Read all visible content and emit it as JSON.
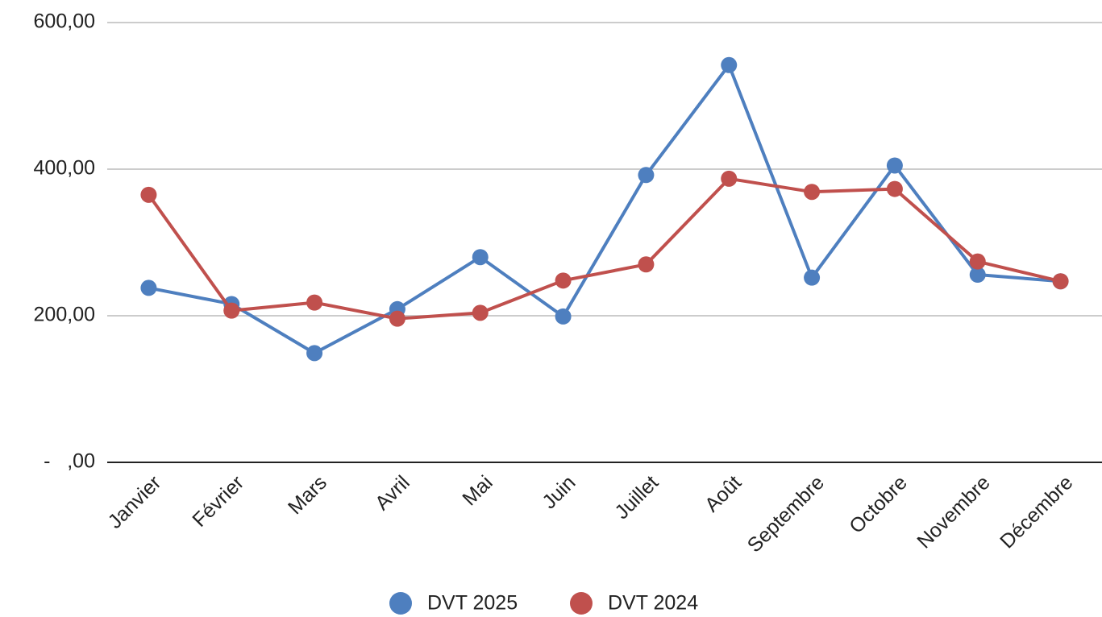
{
  "chart_data": {
    "type": "line",
    "categories": [
      "Janvier",
      "Février",
      "Mars",
      "Avril",
      "Mai",
      "Juin",
      "Juillet",
      "Août",
      "Septembre",
      "Octobre",
      "Novembre",
      "Décembre"
    ],
    "series": [
      {
        "name": "DVT 2025",
        "color": "#4e7fbf",
        "values": [
          238,
          216,
          149,
          209,
          280,
          199,
          392,
          542,
          252,
          405,
          256,
          247
        ]
      },
      {
        "name": "DVT 2024",
        "color": "#c0504d",
        "values": [
          365,
          207,
          218,
          196,
          204,
          248,
          270,
          387,
          369,
          373,
          274,
          247
        ]
      }
    ],
    "ylim": [
      0,
      600
    ],
    "yticks": [
      {
        "value": 0,
        "label": "-   ,00"
      },
      {
        "value": 200,
        "label": "200,00"
      },
      {
        "value": 400,
        "label": "400,00"
      },
      {
        "value": 600,
        "label": "600,00"
      }
    ],
    "grid": true,
    "legend": "bottom"
  }
}
